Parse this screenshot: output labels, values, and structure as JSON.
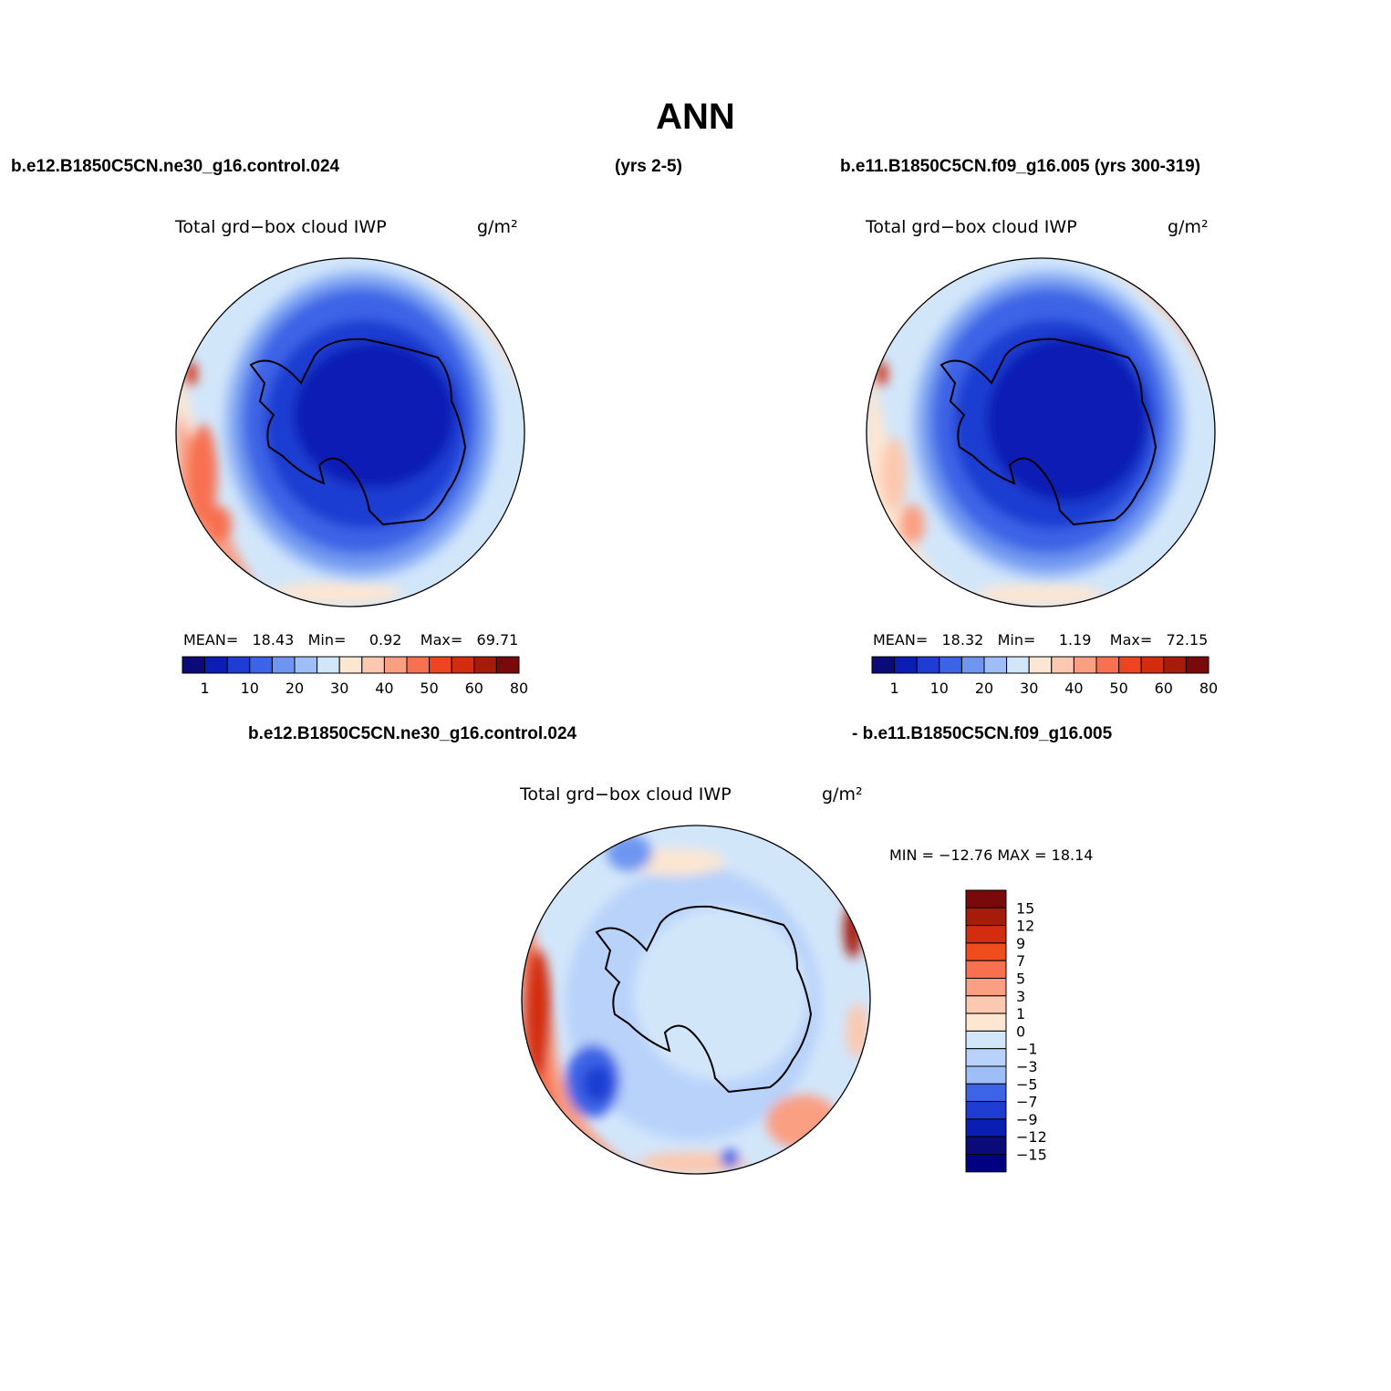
{
  "title": "ANN",
  "header": {
    "left_case": "b.e12.B1850C5CN.ne30_g16.control.024",
    "left_years": "(yrs 2-5)",
    "right_case": "b.e11.B1850C5CN.f09_g16.005 (yrs 300-319)"
  },
  "diff_header": {
    "left": "b.e12.B1850C5CN.ne30_g16.control.024",
    "right": "- b.e11.B1850C5CN.f09_g16.005"
  },
  "panels": [
    {
      "variable": "Total grd−box cloud IWP",
      "units": "g/m²",
      "stats": {
        "mean_label": "MEAN=",
        "mean": "18.43",
        "min_label": "Min=",
        "min": "0.92",
        "max_label": "Max=",
        "max": "69.71"
      }
    },
    {
      "variable": "Total grd−box cloud IWP",
      "units": "g/m²",
      "stats": {
        "mean_label": "MEAN=",
        "mean": "18.32",
        "min_label": "Min=",
        "min": "1.19",
        "max_label": "Max=",
        "max": "72.15"
      }
    },
    {
      "variable": "Total grd−box cloud IWP",
      "units": "g/m²",
      "stats": {
        "text": "MIN = −12.76 MAX =   18.14"
      }
    }
  ],
  "colorbar_abs": {
    "colors": [
      "#0a0a78",
      "#0a1eb4",
      "#1e3cd2",
      "#3c64e6",
      "#6e96f0",
      "#9ebef8",
      "#d2e6fa",
      "#fde6d2",
      "#fcc8af",
      "#fa9f82",
      "#f77050",
      "#ee4520",
      "#d22d0f",
      "#a61c0a",
      "#7a0a0a"
    ],
    "labels": [
      "1",
      "10",
      "20",
      "30",
      "40",
      "50",
      "60",
      "80"
    ]
  },
  "colorbar_diff": {
    "colors": [
      "#7a0a0a",
      "#a61c0a",
      "#d22d0f",
      "#f04d1e",
      "#f77050",
      "#fa9f82",
      "#fcc8af",
      "#fde6d2",
      "#d2e6fa",
      "#b8d2fa",
      "#9ebef8",
      "#3c64e6",
      "#1e3cd2",
      "#0a1eb4",
      "#0a0a78",
      "#000080"
    ],
    "labels": [
      "15",
      "12",
      "9",
      "7",
      "5",
      "3",
      "1",
      "0",
      "−1",
      "−3",
      "−5",
      "−7",
      "−9",
      "−12",
      "−15"
    ]
  },
  "map_colors": {
    "deep": "#0a1eb4",
    "dark": "#1e3cd2",
    "mid": "#3c64e6",
    "light": "#6e96f0",
    "pale": "#9ebef8",
    "ice": "#d2e6fa",
    "peach": "#fde6d2",
    "salmon": "#fa9f82",
    "orange": "#f77050",
    "red": "#d22d0f",
    "dred": "#a61c0a"
  }
}
